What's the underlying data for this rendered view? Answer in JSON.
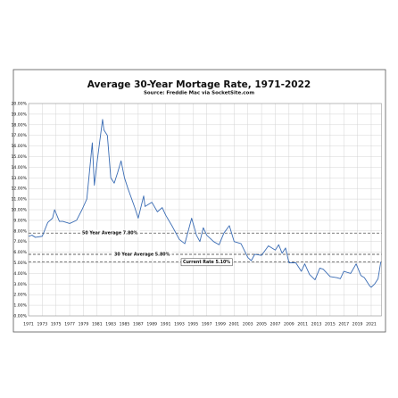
{
  "chart_data": {
    "type": "line",
    "title": "Average 30-Year Mortage Rate, 1971-2022",
    "subtitle": "Source: Freddie Mac via SocketSite.com",
    "x": [
      1971,
      1971.5,
      1972,
      1973,
      1973.8,
      1974.5,
      1974.8,
      1975.5,
      1976,
      1977,
      1978,
      1978.8,
      1979.5,
      1980.3,
      1980.6,
      1981,
      1981.8,
      1982,
      1982.5,
      1983,
      1983.5,
      1984,
      1984.5,
      1985,
      1985.5,
      1986.5,
      1987,
      1987.8,
      1988,
      1989,
      1989.8,
      1990.5,
      1991,
      1992,
      1993,
      1993.8,
      1994.8,
      1995.5,
      1996,
      1996.5,
      1997,
      1998,
      1998.8,
      1999.5,
      2000.3,
      2001,
      2002,
      2003,
      2003.5,
      2004,
      2005,
      2006,
      2007,
      2007.5,
      2008,
      2008.5,
      2009,
      2010,
      2010.8,
      2011.3,
      2012,
      2012.8,
      2013.5,
      2014,
      2015,
      2016,
      2016.5,
      2017,
      2018,
      2018.8,
      2019.5,
      2020,
      2020.8,
      2021,
      2021.5,
      2022,
      2022.4
    ],
    "series": [
      {
        "name": "30-Year Mortgage Rate",
        "color": "#3a6cb4",
        "values": [
          7.5,
          7.6,
          7.4,
          7.5,
          8.8,
          9.2,
          10.0,
          8.9,
          8.9,
          8.7,
          9.0,
          10.0,
          11.0,
          16.3,
          12.3,
          14.5,
          18.5,
          17.5,
          17.0,
          13.0,
          12.5,
          13.5,
          14.6,
          13.0,
          12.0,
          10.2,
          9.2,
          11.3,
          10.3,
          10.7,
          9.8,
          10.2,
          9.5,
          8.4,
          7.2,
          6.8,
          9.2,
          7.6,
          7.0,
          8.3,
          7.6,
          7.0,
          6.7,
          7.8,
          8.5,
          7.0,
          6.8,
          5.5,
          5.2,
          5.8,
          5.7,
          6.6,
          6.2,
          6.7,
          5.9,
          6.4,
          5.0,
          5.0,
          4.2,
          4.9,
          3.9,
          3.4,
          4.5,
          4.4,
          3.7,
          3.6,
          3.5,
          4.2,
          4.0,
          4.9,
          3.8,
          3.6,
          2.8,
          2.7,
          3.0,
          3.5,
          5.1
        ]
      }
    ],
    "reference_lines": [
      {
        "value": 7.8,
        "label": "50 Year Average 7.80%"
      },
      {
        "value": 5.8,
        "label": "30 Year Average 5.80%"
      },
      {
        "value": 5.1,
        "label": "Current Rate 5.10%"
      }
    ],
    "xlim": [
      1971,
      2022.5
    ],
    "xticks": [
      1971,
      1973,
      1975,
      1977,
      1979,
      1981,
      1983,
      1985,
      1987,
      1989,
      1991,
      1993,
      1995,
      1997,
      1999,
      2001,
      2003,
      2005,
      2007,
      2009,
      2011,
      2013,
      2015,
      2017,
      2019,
      2021
    ],
    "ylim": [
      0,
      20
    ],
    "yticks": [
      {
        "value": 0,
        "label": "0.00%"
      },
      {
        "value": 1,
        "label": "1.00%"
      },
      {
        "value": 2,
        "label": "2.00%"
      },
      {
        "value": 3,
        "label": "3.00%"
      },
      {
        "value": 4,
        "label": "4.00%"
      },
      {
        "value": 5,
        "label": "5.00%"
      },
      {
        "value": 6,
        "label": "6.00%"
      },
      {
        "value": 7,
        "label": "7.00%"
      },
      {
        "value": 8,
        "label": "8.00%"
      },
      {
        "value": 9,
        "label": "9.00%"
      },
      {
        "value": 10,
        "label": "10.00%"
      },
      {
        "value": 11,
        "label": "11.00%"
      },
      {
        "value": 12,
        "label": "12.00%"
      },
      {
        "value": 13,
        "label": "13.00%"
      },
      {
        "value": 14,
        "label": "14.00%"
      },
      {
        "value": 15,
        "label": "15.00%"
      },
      {
        "value": 16,
        "label": "16.00%"
      },
      {
        "value": 17,
        "label": "17.00%"
      },
      {
        "value": 18,
        "label": "18.00%"
      },
      {
        "value": 19,
        "label": "19.00%"
      },
      {
        "value": 20,
        "label": "20.00%"
      }
    ],
    "grid": true
  }
}
